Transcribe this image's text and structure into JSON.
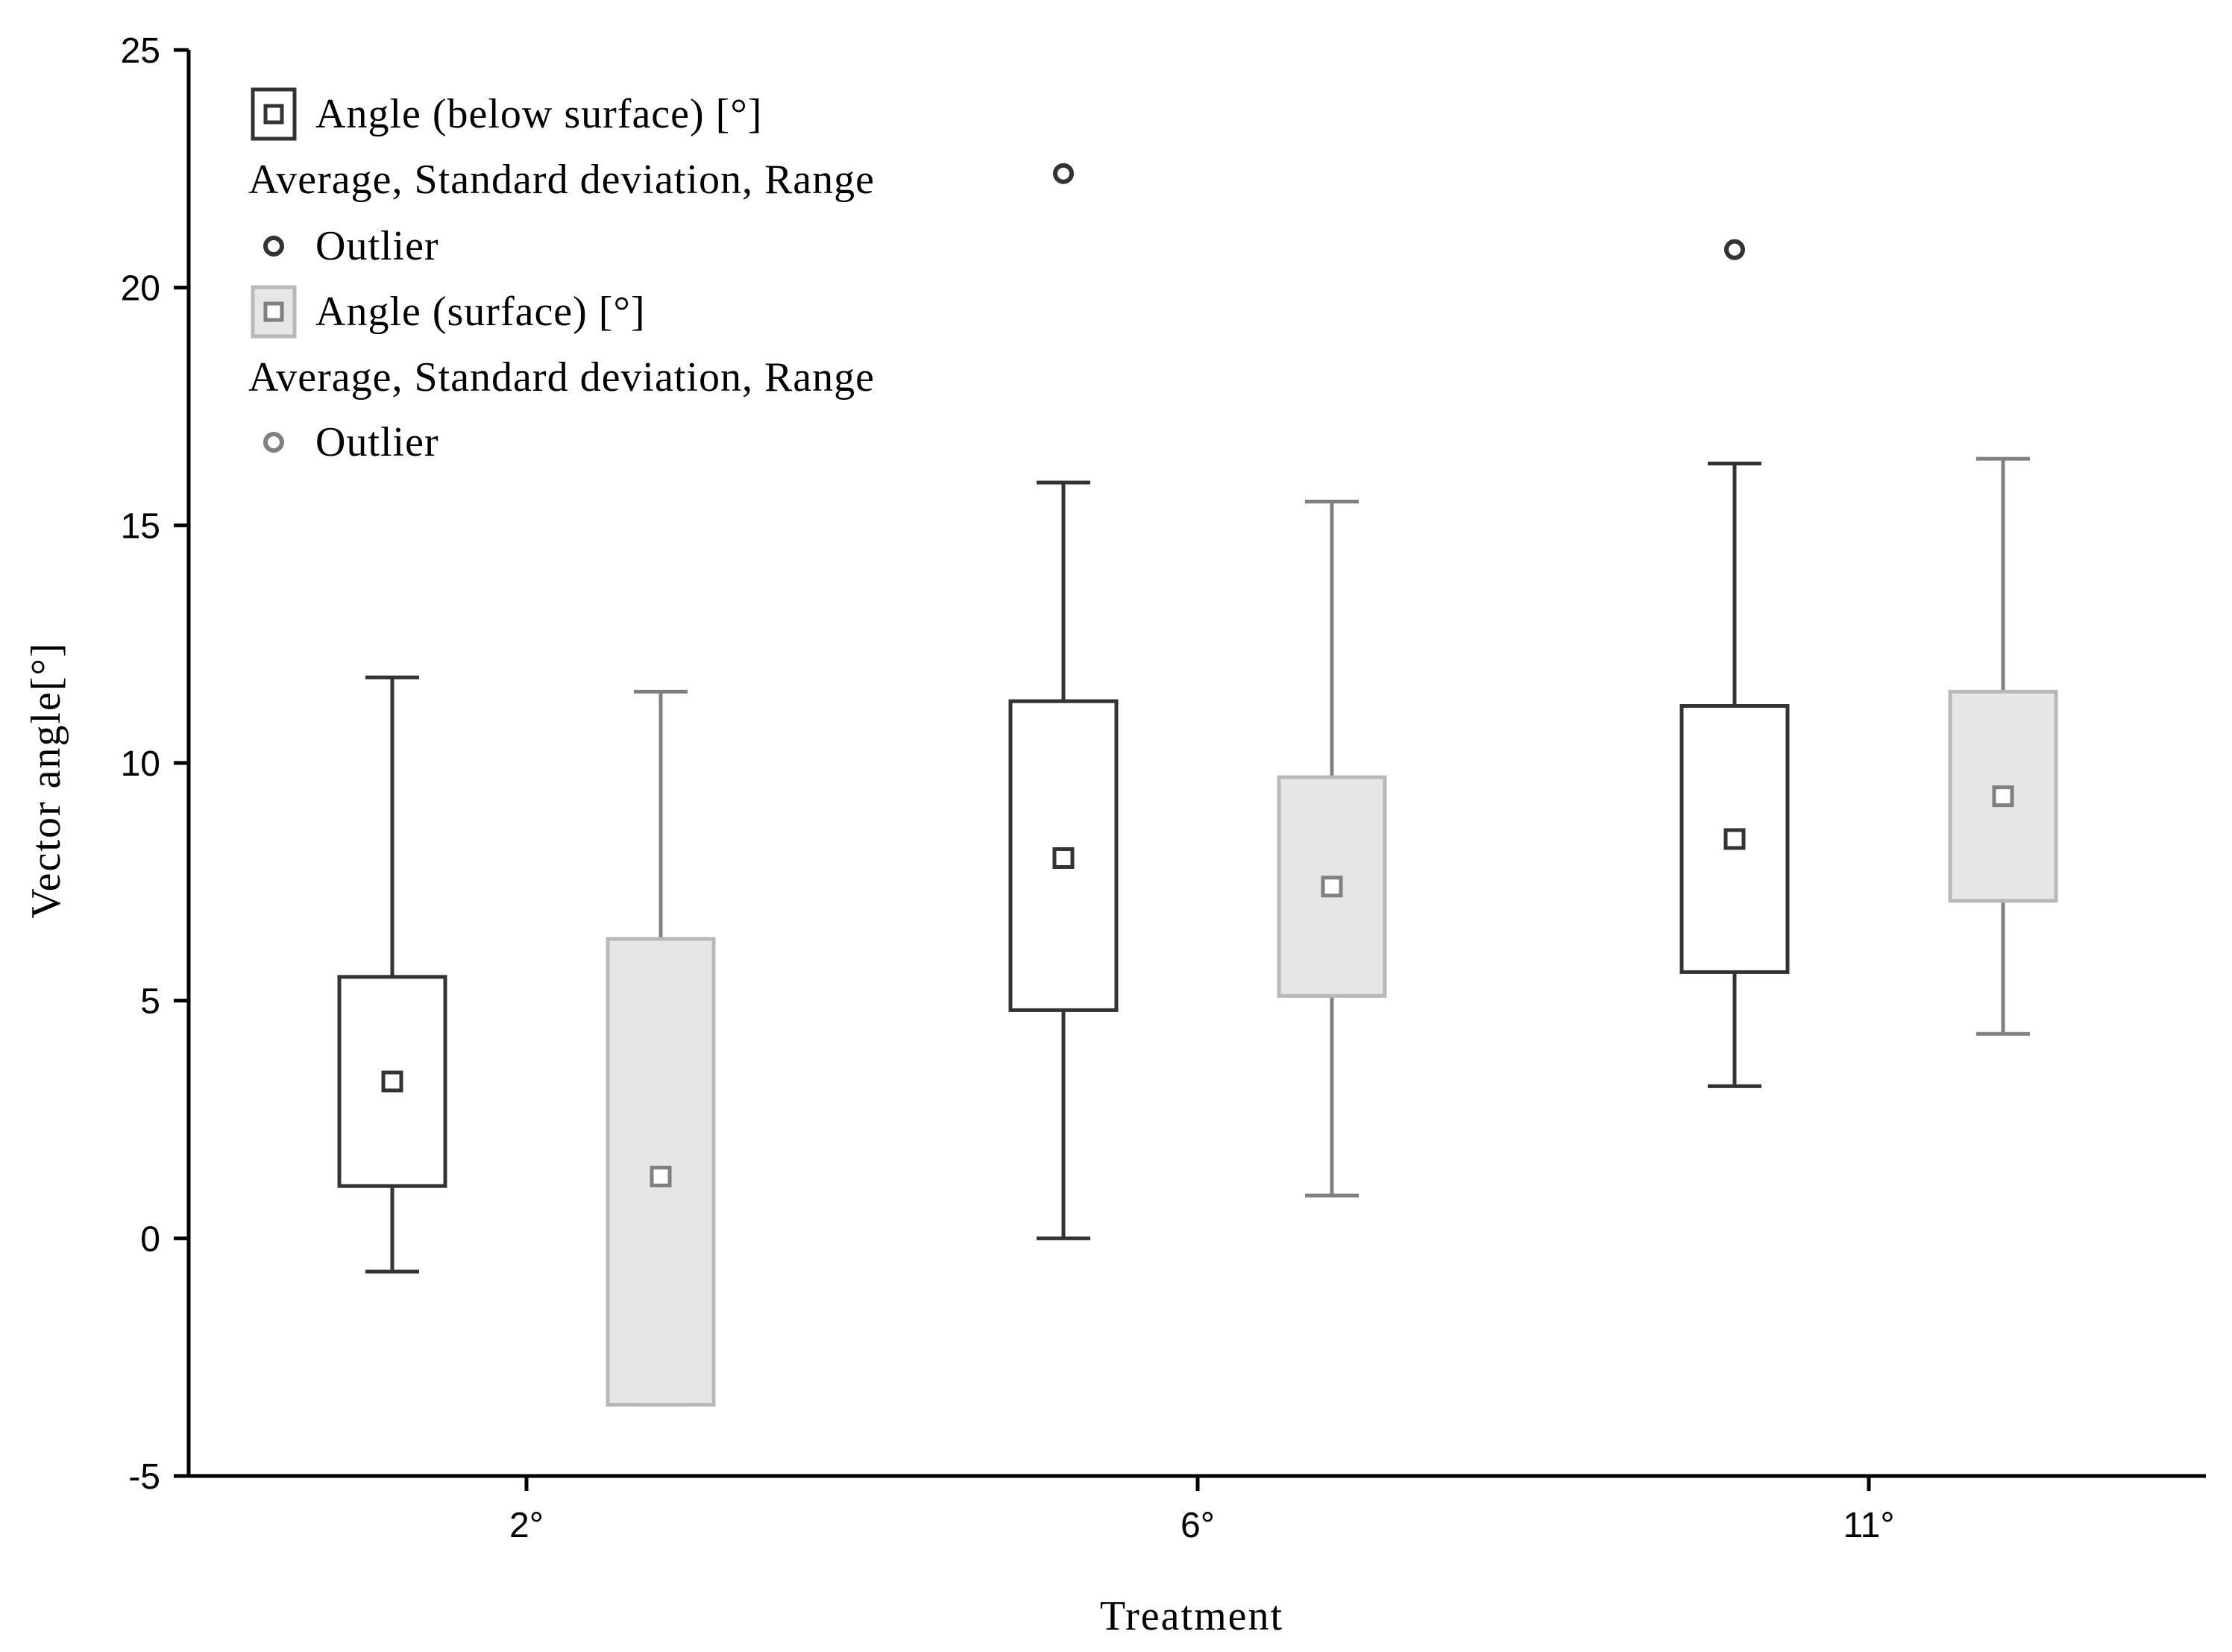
{
  "chart_data": {
    "type": "box",
    "xlabel": "Treatment",
    "ylabel": "Vector angle[°]",
    "categories": [
      "2°",
      "6°",
      "11°"
    ],
    "ylim": [
      -5,
      25
    ],
    "yticks": [
      -5,
      0,
      5,
      10,
      15,
      20,
      25
    ],
    "grid": false,
    "legend_position": "top-left",
    "series": [
      {
        "name": "Angle (below surface) [°]",
        "color": "#333333",
        "fill": "#ffffff",
        "boxes": [
          {
            "category": "2°",
            "mean": 3.3,
            "box_low": 1.1,
            "box_high": 5.5,
            "whisker_low": -0.7,
            "whisker_high": 11.8,
            "outliers": []
          },
          {
            "category": "6°",
            "mean": 8.0,
            "box_low": 4.8,
            "box_high": 11.3,
            "whisker_low": 0.0,
            "whisker_high": 15.9,
            "outliers": [
              22.4
            ]
          },
          {
            "category": "11°",
            "mean": 8.4,
            "box_low": 5.6,
            "box_high": 11.2,
            "whisker_low": 3.2,
            "whisker_high": 16.3,
            "outliers": [
              20.8
            ]
          }
        ]
      },
      {
        "name": "Angle (surface) [°]",
        "color": "#808080",
        "fill": "#e6e6e6",
        "boxes": [
          {
            "category": "2°",
            "mean": 1.3,
            "box_low": -3.5,
            "box_high": 6.3,
            "whisker_low": -3.5,
            "whisker_high": 11.5,
            "outliers": []
          },
          {
            "category": "6°",
            "mean": 7.4,
            "box_low": 5.1,
            "box_high": 9.7,
            "whisker_low": 0.9,
            "whisker_high": 15.5,
            "outliers": []
          },
          {
            "category": "11°",
            "mean": 9.3,
            "box_low": 7.1,
            "box_high": 11.5,
            "whisker_low": 4.3,
            "whisker_high": 16.4,
            "outliers": []
          }
        ]
      }
    ],
    "legend": [
      {
        "kind": "box",
        "series": 0,
        "text": "Angle (below surface) [°]"
      },
      {
        "kind": "text",
        "text": "Average, Standard deviation, Range"
      },
      {
        "kind": "outlier",
        "series": 0,
        "text": "Outlier"
      },
      {
        "kind": "box",
        "series": 1,
        "text": "Angle (surface) [°]"
      },
      {
        "kind": "text",
        "text": "Average, Standard deviation, Range"
      },
      {
        "kind": "outlier",
        "series": 1,
        "text": "Outlier"
      }
    ]
  }
}
